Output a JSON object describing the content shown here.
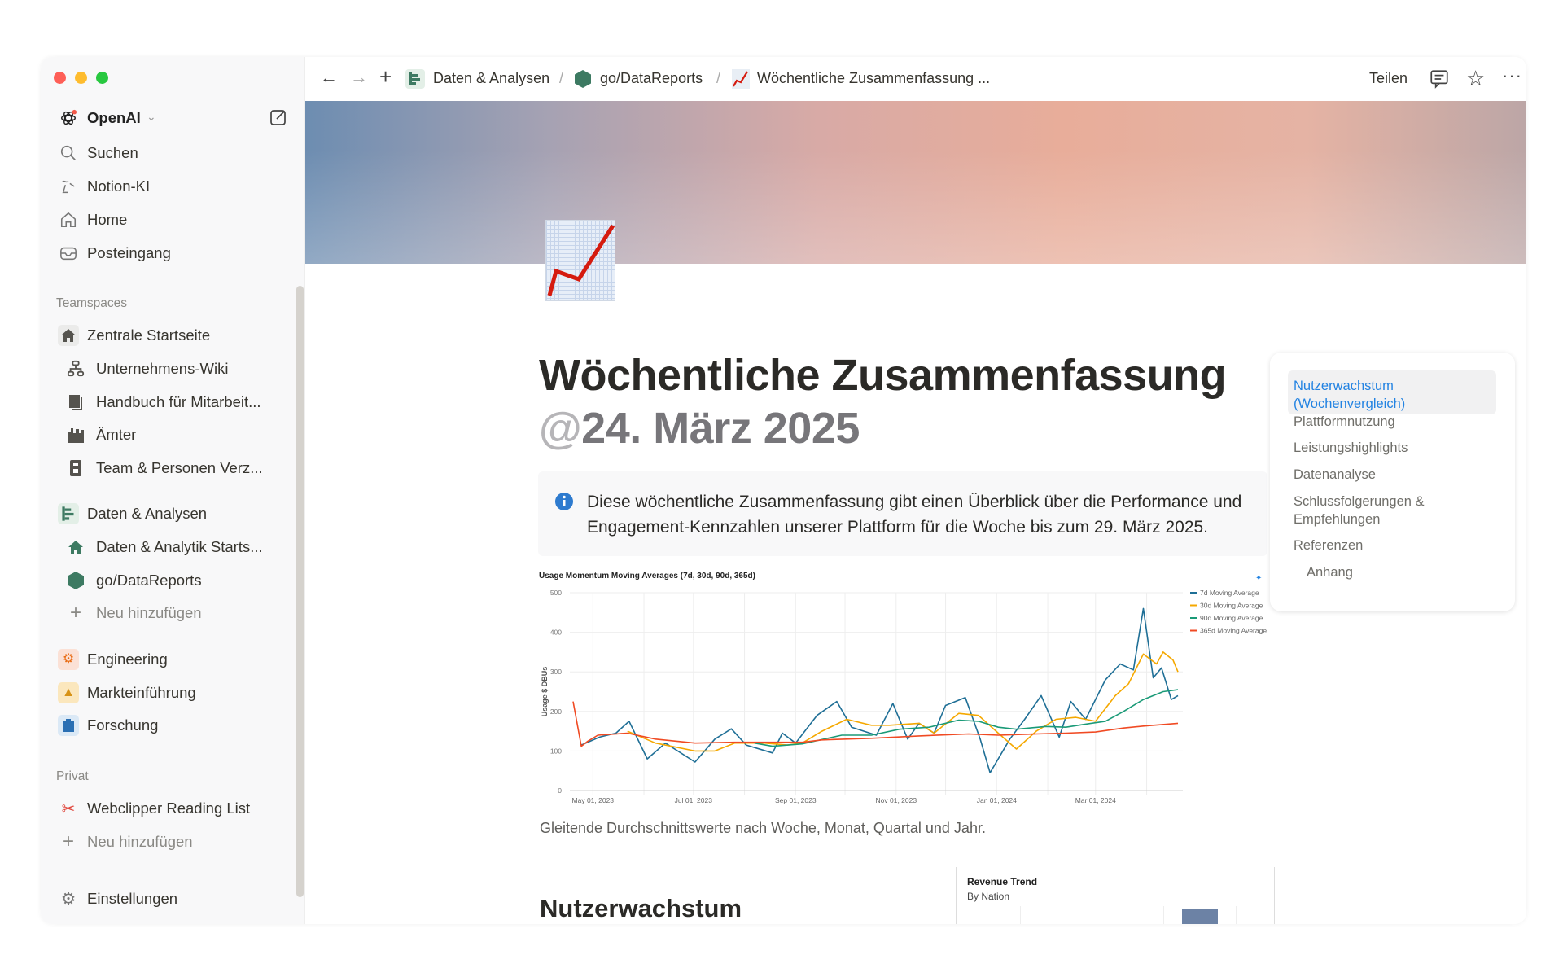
{
  "window": {
    "controls": [
      "close",
      "minimize",
      "maximize"
    ]
  },
  "workspace": {
    "name": "OpenAI",
    "icon": "openai-logo-icon"
  },
  "sidebar": {
    "nav": [
      {
        "label": "Suchen",
        "icon": "search-icon"
      },
      {
        "label": "Notion-KI",
        "icon": "notion-ai-icon"
      },
      {
        "label": "Home",
        "icon": "home-icon"
      },
      {
        "label": "Posteingang",
        "icon": "inbox-icon"
      }
    ],
    "teamspaces_heading": "Teamspaces",
    "teamspaces": [
      {
        "label": "Zentrale Startseite",
        "icon": "house-icon",
        "indent": false
      },
      {
        "label": "Unternehmens-Wiki",
        "icon": "org-chart-icon",
        "indent": true
      },
      {
        "label": "Handbuch für Mitarbeit...",
        "icon": "book-icon",
        "indent": true
      },
      {
        "label": "Ämter",
        "icon": "building-icon",
        "indent": true
      },
      {
        "label": "Team & Personen Verz...",
        "icon": "id-badge-icon",
        "indent": true
      },
      {
        "label": "Daten & Analysen",
        "icon": "bar-chart-icon",
        "indent": false
      },
      {
        "label": "Daten & Analytik Starts...",
        "icon": "house-icon",
        "indent": true
      },
      {
        "label": "go/DataReports",
        "icon": "hexagon-icon",
        "indent": true
      },
      {
        "label": "Neu hinzufügen",
        "icon": "plus-icon",
        "indent": true
      },
      {
        "label": "Engineering",
        "icon": "gears-icon",
        "indent": false
      },
      {
        "label": "Markteinführung",
        "icon": "rocket-icon",
        "indent": false
      },
      {
        "label": "Forschung",
        "icon": "clipboard-icon",
        "indent": false
      }
    ],
    "private_heading": "Privat",
    "private": [
      {
        "label": "Webclipper Reading List",
        "icon": "scissors-icon"
      },
      {
        "label": "Neu hinzufügen",
        "icon": "plus-icon"
      }
    ],
    "settings": "Einstellungen"
  },
  "topbar": {
    "breadcrumb": [
      "Daten & Analysen",
      "go/DataReports",
      "Wöchentliche Zusammenfassung ..."
    ],
    "separator": "/",
    "share": "Teilen"
  },
  "page": {
    "title": "Wöchentliche Zusammenfassung",
    "date_at": "@",
    "date": "24. März 2025",
    "callout": "Diese wöchentliche Zusammenfassung gibt einen Überblick über die Performance und Engagement-Kennzahlen unserer Plattform für die Woche bis zum 29. März 2025.",
    "chart_caption": "Gleitende Durchschnittswerte nach Woche, Monat, Quartal und Jahr.",
    "section_heading": "Nutzerwachstum",
    "revenue_panel": {
      "title": "Revenue Trend",
      "subtitle": "By Nation"
    }
  },
  "toc": [
    {
      "label": "Nutzerwachstum (Wochenvergleich)",
      "active": true
    },
    {
      "label": "Plattformnutzung"
    },
    {
      "label": "Leistungshighlights"
    },
    {
      "label": "Datenanalyse"
    },
    {
      "label": "Schlussfolgerungen & Empfehlungen"
    },
    {
      "label": "Referenzen"
    },
    {
      "label": "Anhang"
    }
  ],
  "colors": {
    "accent": "#2383e2",
    "hexagon": "#3d7a62"
  },
  "chart_data": {
    "type": "line",
    "title": "Usage Momentum Moving Averages (7d, 30d, 90d, 365d)",
    "ylabel": "Usage $ DBUs",
    "xlabel": "",
    "xlim": [
      "2023-04-19",
      "2024-04-20"
    ],
    "ylim": [
      0,
      500
    ],
    "yticks": [
      0,
      100,
      200,
      300,
      400,
      500
    ],
    "xticks": [
      "2023-05-01",
      "2023-07-01",
      "2023-09-01",
      "2023-11-01",
      "2024-01-01",
      "2024-03-01"
    ],
    "xtick_labels": [
      "May 01, 2023",
      "Jul 01, 2023",
      "Sep 01, 2023",
      "Nov 01, 2023",
      "Jan 01, 2024",
      "Mar 01, 2024"
    ],
    "grid": true,
    "legend": "right",
    "series": [
      {
        "name": "7d Moving Average",
        "color": "#1f6f96",
        "points": [
          [
            "2023-04-24",
            115
          ],
          [
            "2023-05-05",
            135
          ],
          [
            "2023-05-15",
            145
          ],
          [
            "2023-05-23",
            175
          ],
          [
            "2023-06-03",
            80
          ],
          [
            "2023-06-14",
            120
          ],
          [
            "2023-07-02",
            72
          ],
          [
            "2023-07-14",
            130
          ],
          [
            "2023-07-24",
            156
          ],
          [
            "2023-08-02",
            115
          ],
          [
            "2023-08-18",
            95
          ],
          [
            "2023-08-24",
            145
          ],
          [
            "2023-09-01",
            120
          ],
          [
            "2023-09-14",
            190
          ],
          [
            "2023-09-26",
            225
          ],
          [
            "2023-10-05",
            160
          ],
          [
            "2023-10-20",
            140
          ],
          [
            "2023-10-30",
            220
          ],
          [
            "2023-11-08",
            130
          ],
          [
            "2023-11-15",
            170
          ],
          [
            "2023-11-24",
            145
          ],
          [
            "2023-12-01",
            215
          ],
          [
            "2023-12-13",
            235
          ],
          [
            "2023-12-22",
            130
          ],
          [
            "2023-12-28",
            45
          ],
          [
            "2024-01-09",
            130
          ],
          [
            "2024-01-18",
            180
          ],
          [
            "2024-01-28",
            240
          ],
          [
            "2024-02-08",
            135
          ],
          [
            "2024-02-15",
            225
          ],
          [
            "2024-02-24",
            180
          ],
          [
            "2024-03-07",
            280
          ],
          [
            "2024-03-16",
            320
          ],
          [
            "2024-03-24",
            305
          ],
          [
            "2024-03-30",
            460
          ],
          [
            "2024-04-05",
            285
          ],
          [
            "2024-04-10",
            310
          ],
          [
            "2024-04-16",
            230
          ],
          [
            "2024-04-20",
            240
          ]
        ]
      },
      {
        "name": "30d Moving Average",
        "color": "#f5a800",
        "points": [
          [
            "2023-05-22",
            150
          ],
          [
            "2023-06-08",
            120
          ],
          [
            "2023-07-02",
            100
          ],
          [
            "2023-07-14",
            100
          ],
          [
            "2023-07-26",
            120
          ],
          [
            "2023-08-13",
            120
          ],
          [
            "2023-08-27",
            115
          ],
          [
            "2023-09-05",
            120
          ],
          [
            "2023-09-17",
            150
          ],
          [
            "2023-10-02",
            180
          ],
          [
            "2023-10-17",
            165
          ],
          [
            "2023-10-28",
            165
          ],
          [
            "2023-11-15",
            170
          ],
          [
            "2023-11-24",
            145
          ],
          [
            "2023-12-09",
            195
          ],
          [
            "2023-12-21",
            190
          ],
          [
            "2024-01-02",
            145
          ],
          [
            "2024-01-13",
            105
          ],
          [
            "2024-01-25",
            150
          ],
          [
            "2024-02-06",
            180
          ],
          [
            "2024-02-18",
            185
          ],
          [
            "2024-03-01",
            175
          ],
          [
            "2024-03-13",
            240
          ],
          [
            "2024-03-21",
            270
          ],
          [
            "2024-03-30",
            345
          ],
          [
            "2024-04-07",
            320
          ],
          [
            "2024-04-11",
            350
          ],
          [
            "2024-04-17",
            330
          ],
          [
            "2024-04-20",
            300
          ]
        ]
      },
      {
        "name": "90d Moving Average",
        "color": "#1a9a77",
        "points": [
          [
            "2023-08-07",
            120
          ],
          [
            "2023-08-18",
            112
          ],
          [
            "2023-09-05",
            118
          ],
          [
            "2023-09-29",
            140
          ],
          [
            "2023-10-17",
            140
          ],
          [
            "2023-11-03",
            155
          ],
          [
            "2023-11-21",
            160
          ],
          [
            "2023-12-09",
            178
          ],
          [
            "2023-12-21",
            175
          ],
          [
            "2024-01-02",
            160
          ],
          [
            "2024-01-13",
            155
          ],
          [
            "2024-01-31",
            162
          ],
          [
            "2024-02-12",
            160
          ],
          [
            "2024-02-24",
            168
          ],
          [
            "2024-03-07",
            175
          ],
          [
            "2024-03-18",
            200
          ],
          [
            "2024-03-30",
            230
          ],
          [
            "2024-04-11",
            250
          ],
          [
            "2024-04-20",
            255
          ]
        ]
      },
      {
        "name": "365d Moving Average",
        "color": "#f04a23",
        "points": [
          [
            "2023-04-19",
            225
          ],
          [
            "2023-04-24",
            112
          ],
          [
            "2023-04-28",
            125
          ],
          [
            "2023-05-04",
            140
          ],
          [
            "2023-05-22",
            145
          ],
          [
            "2023-06-08",
            130
          ],
          [
            "2023-07-02",
            120
          ],
          [
            "2023-07-26",
            122
          ],
          [
            "2023-08-18",
            122
          ],
          [
            "2023-09-05",
            122
          ],
          [
            "2023-09-17",
            128
          ],
          [
            "2023-10-17",
            132
          ],
          [
            "2023-11-15",
            138
          ],
          [
            "2023-12-15",
            143
          ],
          [
            "2024-01-02",
            140
          ],
          [
            "2024-01-25",
            143
          ],
          [
            "2024-02-12",
            145
          ],
          [
            "2024-03-01",
            148
          ],
          [
            "2024-03-18",
            158
          ],
          [
            "2024-03-30",
            163
          ],
          [
            "2024-04-20",
            170
          ]
        ]
      }
    ]
  }
}
